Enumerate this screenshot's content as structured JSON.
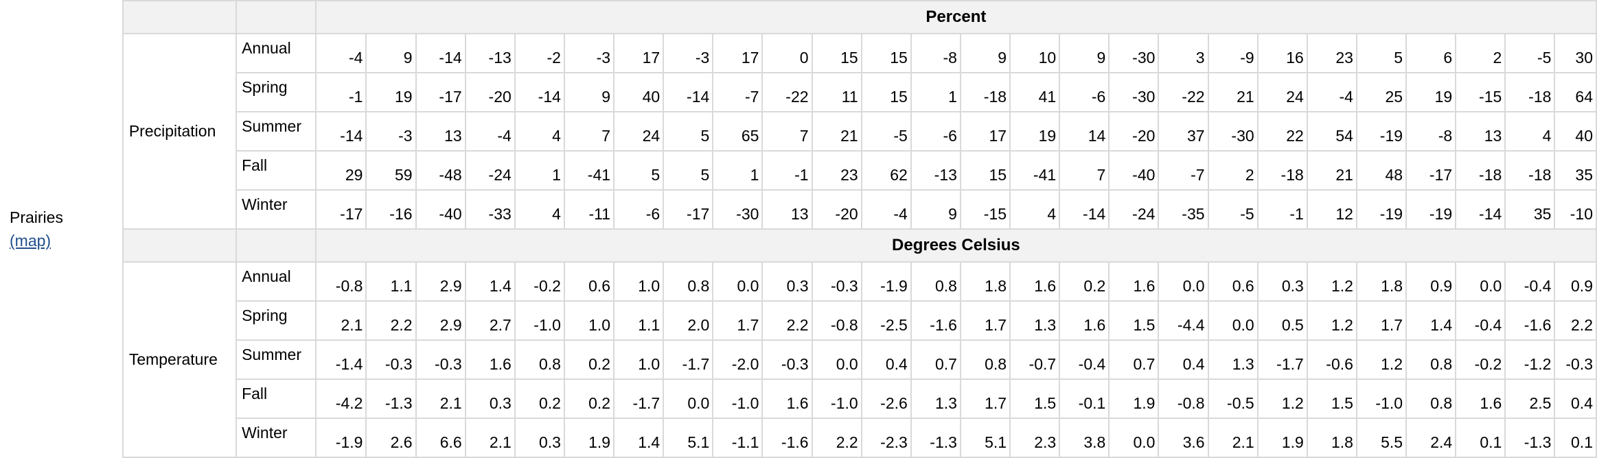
{
  "region": {
    "name": "Prairies",
    "map_link": "(map)"
  },
  "sections": [
    {
      "unit": "Percent",
      "variable": "Precipitation",
      "rows": [
        {
          "season": "Annual",
          "values": [
            "-4",
            "9",
            "-14",
            "-13",
            "-2",
            "-3",
            "17",
            "-3",
            "17",
            "0",
            "15",
            "15",
            "-8",
            "9",
            "10",
            "9",
            "-30",
            "3",
            "-9",
            "16",
            "23",
            "5",
            "6",
            "2",
            "-5",
            "30"
          ]
        },
        {
          "season": "Spring",
          "values": [
            "-1",
            "19",
            "-17",
            "-20",
            "-14",
            "9",
            "40",
            "-14",
            "-7",
            "-22",
            "11",
            "15",
            "1",
            "-18",
            "41",
            "-6",
            "-30",
            "-22",
            "21",
            "24",
            "-4",
            "25",
            "19",
            "-15",
            "-18",
            "64"
          ]
        },
        {
          "season": "Summer",
          "values": [
            "-14",
            "-3",
            "13",
            "-4",
            "4",
            "7",
            "24",
            "5",
            "65",
            "7",
            "21",
            "-5",
            "-6",
            "17",
            "19",
            "14",
            "-20",
            "37",
            "-30",
            "22",
            "54",
            "-19",
            "-8",
            "13",
            "4",
            "40"
          ]
        },
        {
          "season": "Fall",
          "values": [
            "29",
            "59",
            "-48",
            "-24",
            "1",
            "-41",
            "5",
            "5",
            "1",
            "-1",
            "23",
            "62",
            "-13",
            "15",
            "-41",
            "7",
            "-40",
            "-7",
            "2",
            "-18",
            "21",
            "48",
            "-17",
            "-18",
            "-18",
            "35"
          ]
        },
        {
          "season": "Winter",
          "values": [
            "-17",
            "-16",
            "-40",
            "-33",
            "4",
            "-11",
            "-6",
            "-17",
            "-30",
            "13",
            "-20",
            "-4",
            "9",
            "-15",
            "4",
            "-14",
            "-24",
            "-35",
            "-5",
            "-1",
            "12",
            "-19",
            "-19",
            "-14",
            "35",
            "-10"
          ]
        }
      ]
    },
    {
      "unit": "Degrees Celsius",
      "variable": "Temperature",
      "rows": [
        {
          "season": "Annual",
          "values": [
            "-0.8",
            "1.1",
            "2.9",
            "1.4",
            "-0.2",
            "0.6",
            "1.0",
            "0.8",
            "0.0",
            "0.3",
            "-0.3",
            "-1.9",
            "0.8",
            "1.8",
            "1.6",
            "0.2",
            "1.6",
            "0.0",
            "0.6",
            "0.3",
            "1.2",
            "1.8",
            "0.9",
            "0.0",
            "-0.4",
            "0.9"
          ]
        },
        {
          "season": "Spring",
          "values": [
            "2.1",
            "2.2",
            "2.9",
            "2.7",
            "-1.0",
            "1.0",
            "1.1",
            "2.0",
            "1.7",
            "2.2",
            "-0.8",
            "-2.5",
            "-1.6",
            "1.7",
            "1.3",
            "1.6",
            "1.5",
            "-4.4",
            "0.0",
            "0.5",
            "1.2",
            "1.7",
            "1.4",
            "-0.4",
            "-1.6",
            "2.2"
          ]
        },
        {
          "season": "Summer",
          "values": [
            "-1.4",
            "-0.3",
            "-0.3",
            "1.6",
            "0.8",
            "0.2",
            "1.0",
            "-1.7",
            "-2.0",
            "-0.3",
            "0.0",
            "0.4",
            "0.7",
            "0.8",
            "-0.7",
            "-0.4",
            "0.7",
            "0.4",
            "1.3",
            "-1.7",
            "-0.6",
            "1.2",
            "0.8",
            "-0.2",
            "-1.2",
            "-0.3"
          ]
        },
        {
          "season": "Fall",
          "values": [
            "-4.2",
            "-1.3",
            "2.1",
            "0.3",
            "0.2",
            "0.2",
            "-1.7",
            "0.0",
            "-1.0",
            "1.6",
            "-1.0",
            "-2.6",
            "1.3",
            "1.7",
            "1.5",
            "-0.1",
            "1.9",
            "-0.8",
            "-0.5",
            "1.2",
            "1.5",
            "-1.0",
            "0.8",
            "1.6",
            "2.5",
            "0.4"
          ]
        },
        {
          "season": "Winter",
          "values": [
            "-1.9",
            "2.6",
            "6.6",
            "2.1",
            "0.3",
            "1.9",
            "1.4",
            "5.1",
            "-1.1",
            "-1.6",
            "2.2",
            "-2.3",
            "-1.3",
            "5.1",
            "2.3",
            "3.8",
            "0.0",
            "3.6",
            "2.1",
            "1.9",
            "1.8",
            "5.5",
            "2.4",
            "0.1",
            "-1.3",
            "0.1"
          ]
        }
      ]
    }
  ]
}
